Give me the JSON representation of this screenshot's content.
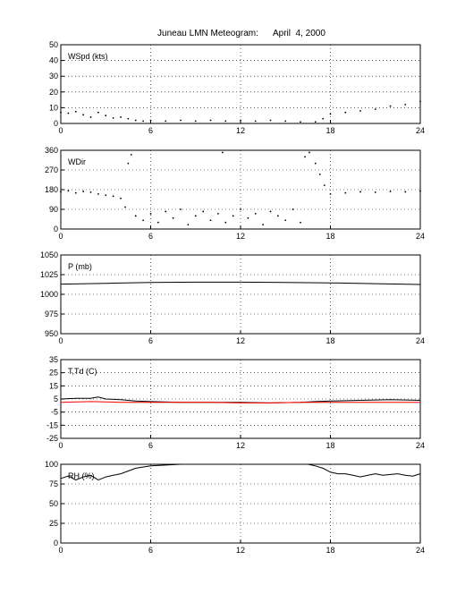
{
  "title": "Juneau LMN Meteogram:      April  4, 2000",
  "chart_data": [
    {
      "type": "scatter",
      "label": "WSpd (kts)",
      "xlim": [
        0,
        24
      ],
      "ylim": [
        0,
        50
      ],
      "x_ticks": [
        "0",
        "6",
        "12",
        "18",
        "24"
      ],
      "y_ticks": [
        "0",
        "10",
        "20",
        "30",
        "40",
        "50"
      ],
      "grid": true,
      "series": [
        {
          "color": "#000000",
          "points": [
            [
              0,
              7
            ],
            [
              0.5,
              6.5
            ],
            [
              1,
              7.5
            ],
            [
              1.5,
              5.5
            ],
            [
              2,
              4
            ],
            [
              2.5,
              7
            ],
            [
              3,
              5
            ],
            [
              3.5,
              3.5
            ],
            [
              4,
              4
            ],
            [
              4.5,
              3
            ],
            [
              5,
              2
            ],
            [
              5.5,
              1.5
            ],
            [
              6,
              2
            ],
            [
              7,
              1.5
            ],
            [
              8,
              2
            ],
            [
              9,
              1.5
            ],
            [
              10,
              2
            ],
            [
              11,
              1.5
            ],
            [
              12,
              2
            ],
            [
              13,
              1.5
            ],
            [
              14,
              2
            ],
            [
              15,
              1.5
            ],
            [
              16,
              1
            ],
            [
              17,
              1
            ],
            [
              17.5,
              3
            ],
            [
              18,
              6
            ],
            [
              19,
              7
            ],
            [
              20,
              8
            ],
            [
              21,
              9
            ],
            [
              22,
              11
            ],
            [
              23,
              12
            ],
            [
              24,
              14
            ]
          ]
        }
      ]
    },
    {
      "type": "scatter",
      "label": "WDir",
      "xlim": [
        0,
        24
      ],
      "ylim": [
        0,
        360
      ],
      "x_ticks": [
        "0",
        "6",
        "12",
        "18",
        "24"
      ],
      "y_ticks": [
        "0",
        "90",
        "180",
        "270",
        "360"
      ],
      "grid": true,
      "series": [
        {
          "color": "#000000",
          "points": [
            [
              0,
              170
            ],
            [
              0.5,
              175
            ],
            [
              1,
              165
            ],
            [
              1.5,
              172
            ],
            [
              2,
              168
            ],
            [
              2.5,
              160
            ],
            [
              3,
              155
            ],
            [
              3.5,
              150
            ],
            [
              4,
              140
            ],
            [
              4.3,
              100
            ],
            [
              4.5,
              300
            ],
            [
              4.7,
              340
            ],
            [
              5,
              60
            ],
            [
              5.5,
              40
            ],
            [
              6,
              70
            ],
            [
              6.5,
              30
            ],
            [
              7,
              80
            ],
            [
              7.5,
              50
            ],
            [
              8,
              90
            ],
            [
              8.5,
              20
            ],
            [
              9,
              60
            ],
            [
              9.5,
              80
            ],
            [
              10,
              40
            ],
            [
              10.5,
              70
            ],
            [
              10.8,
              350
            ],
            [
              11,
              30
            ],
            [
              11.5,
              60
            ],
            [
              12,
              90
            ],
            [
              12.5,
              50
            ],
            [
              13,
              70
            ],
            [
              13.5,
              20
            ],
            [
              14,
              80
            ],
            [
              14.5,
              60
            ],
            [
              15,
              40
            ],
            [
              15.5,
              90
            ],
            [
              16,
              30
            ],
            [
              16.3,
              330
            ],
            [
              16.6,
              350
            ],
            [
              17,
              300
            ],
            [
              17.3,
              250
            ],
            [
              17.6,
              200
            ],
            [
              18,
              160
            ],
            [
              19,
              165
            ],
            [
              20,
              170
            ],
            [
              21,
              168
            ],
            [
              22,
              172
            ],
            [
              23,
              170
            ],
            [
              24,
              173
            ]
          ]
        }
      ]
    },
    {
      "type": "line",
      "label": "P (mb)",
      "xlim": [
        0,
        24
      ],
      "ylim": [
        950,
        1050
      ],
      "x_ticks": [
        "0",
        "6",
        "12",
        "18",
        "24"
      ],
      "y_ticks": [
        "950",
        "975",
        "1000",
        "1025",
        "1050"
      ],
      "grid": true,
      "series": [
        {
          "color": "#000000",
          "points": [
            [
              0,
              1013
            ],
            [
              3,
              1014
            ],
            [
              6,
              1015
            ],
            [
              9,
              1015.5
            ],
            [
              12,
              1015.5
            ],
            [
              15,
              1015
            ],
            [
              18,
              1014.5
            ],
            [
              21,
              1013.5
            ],
            [
              24,
              1012.5
            ]
          ]
        }
      ]
    },
    {
      "type": "line",
      "label": "T,Td (C)",
      "xlim": [
        0,
        24
      ],
      "ylim": [
        -25,
        35
      ],
      "x_ticks": [
        "0",
        "6",
        "12",
        "18",
        "24"
      ],
      "y_ticks": [
        "-25",
        "-15",
        "-5",
        "5",
        "15",
        "25",
        "35"
      ],
      "grid": true,
      "series": [
        {
          "color": "#000000",
          "points": [
            [
              0,
              5
            ],
            [
              1,
              5.5
            ],
            [
              2,
              5.5
            ],
            [
              2.5,
              6.5
            ],
            [
              3,
              5
            ],
            [
              4,
              4.5
            ],
            [
              5,
              3.5
            ],
            [
              6,
              3
            ],
            [
              8,
              2.5
            ],
            [
              10,
              2.5
            ],
            [
              12,
              2.5
            ],
            [
              14,
              2
            ],
            [
              16,
              2.5
            ],
            [
              17,
              3
            ],
            [
              18,
              3.5
            ],
            [
              20,
              4
            ],
            [
              22,
              4.5
            ],
            [
              24,
              4
            ]
          ]
        },
        {
          "color": "#ff0000",
          "points": [
            [
              0,
              2.5
            ],
            [
              2,
              3
            ],
            [
              4,
              2.5
            ],
            [
              6,
              2.5
            ],
            [
              8,
              2.5
            ],
            [
              10,
              2.5
            ],
            [
              12,
              2
            ],
            [
              14,
              2
            ],
            [
              16,
              2.5
            ],
            [
              18,
              2.5
            ],
            [
              20,
              2.5
            ],
            [
              22,
              2.5
            ],
            [
              24,
              2.5
            ]
          ]
        }
      ]
    },
    {
      "type": "line",
      "label": "RH (%)",
      "xlim": [
        0,
        24
      ],
      "ylim": [
        0,
        100
      ],
      "x_ticks": [
        "0",
        "6",
        "12",
        "18",
        "24"
      ],
      "y_ticks": [
        "0",
        "25",
        "50",
        "75",
        "100"
      ],
      "grid": true,
      "series": [
        {
          "color": "#000000",
          "points": [
            [
              0,
              82
            ],
            [
              0.5,
              85
            ],
            [
              1,
              80
            ],
            [
              1.5,
              84
            ],
            [
              2,
              86
            ],
            [
              2.5,
              80
            ],
            [
              3,
              84
            ],
            [
              3.5,
              86
            ],
            [
              4,
              88
            ],
            [
              5,
              95
            ],
            [
              6,
              98
            ],
            [
              7,
              99
            ],
            [
              8,
              100
            ],
            [
              9,
              100
            ],
            [
              12,
              100
            ],
            [
              15,
              100
            ],
            [
              16.5,
              100
            ],
            [
              17,
              98
            ],
            [
              17.5,
              95
            ],
            [
              18,
              90
            ],
            [
              18.5,
              88
            ],
            [
              19,
              88
            ],
            [
              19.5,
              86
            ],
            [
              20,
              84
            ],
            [
              20.5,
              86
            ],
            [
              21,
              88
            ],
            [
              21.5,
              86
            ],
            [
              22,
              87
            ],
            [
              22.5,
              88
            ],
            [
              23,
              86
            ],
            [
              23.5,
              85
            ],
            [
              24,
              88
            ]
          ]
        }
      ]
    }
  ]
}
